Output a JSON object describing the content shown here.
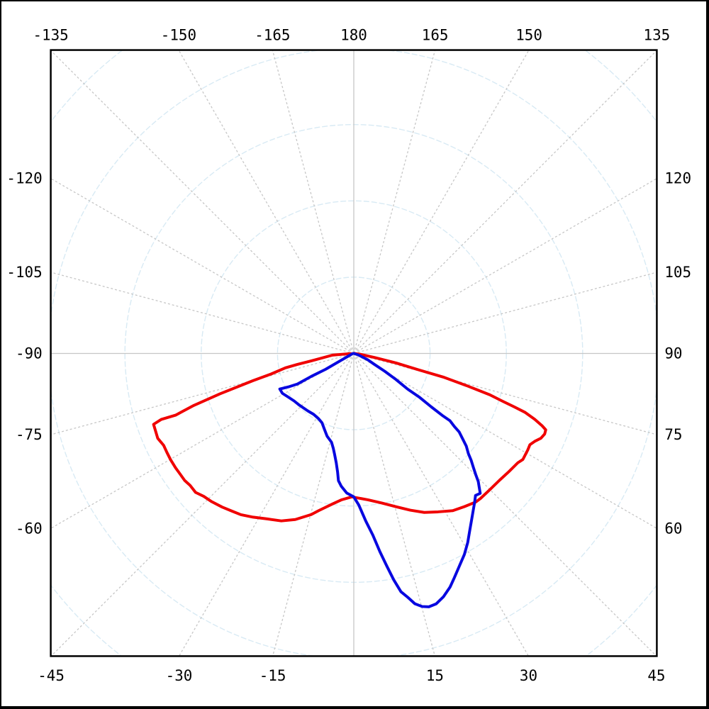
{
  "chart_data": {
    "type": "polar",
    "title": "",
    "description": "Polar luminous-intensity distribution diagram; 0 deg points straight down, +/-90 deg horizontal, 180 deg up. No legend or radial value labels shown.",
    "angle_unit": "degrees",
    "zero_angle_direction": "down",
    "plot": {
      "background": "#ffffff",
      "border_color": "#000000",
      "angular_grid_step_deg": 15,
      "grid_ray_color": "#c6c6c6",
      "grid_ring_color": "#d8eaf4",
      "radial_grid_rings": [
        0.25,
        0.5,
        0.75,
        1.0,
        1.25
      ],
      "radial_full_scale": 1.0
    },
    "angle_ticks": [
      {
        "angle": -135,
        "label": "-135"
      },
      {
        "angle": -150,
        "label": "-150"
      },
      {
        "angle": -165,
        "label": "-165"
      },
      {
        "angle": 180,
        "label": "180"
      },
      {
        "angle": 165,
        "label": "165"
      },
      {
        "angle": 150,
        "label": "150"
      },
      {
        "angle": 135,
        "label": "135"
      },
      {
        "angle": 120,
        "label": "120"
      },
      {
        "angle": 105,
        "label": "105"
      },
      {
        "angle": 90,
        "label": "90"
      },
      {
        "angle": 75,
        "label": "75"
      },
      {
        "angle": 60,
        "label": "60"
      },
      {
        "angle": 45,
        "label": "45"
      },
      {
        "angle": 30,
        "label": "30"
      },
      {
        "angle": 15,
        "label": "15"
      },
      {
        "angle": -15,
        "label": "-15"
      },
      {
        "angle": -30,
        "label": "-30"
      },
      {
        "angle": -45,
        "label": "-45"
      },
      {
        "angle": -60,
        "label": "-60"
      },
      {
        "angle": -75,
        "label": "-75"
      },
      {
        "angle": -90,
        "label": "-90"
      },
      {
        "angle": -105,
        "label": "-105"
      },
      {
        "angle": -120,
        "label": "-120"
      }
    ],
    "series": [
      {
        "name": "red",
        "color": "#f00000",
        "stroke_width": 4,
        "r_unit": "fraction of outermost full-scale grid ring",
        "points": [
          [
            -88,
            0.01
          ],
          [
            -85.4,
            0.07
          ],
          [
            -80.1,
            0.141
          ],
          [
            -79,
            0.188
          ],
          [
            -78.1,
            0.229
          ],
          [
            -76,
            0.28
          ],
          [
            -74.9,
            0.342
          ],
          [
            -73.2,
            0.458
          ],
          [
            -72,
            0.551
          ],
          [
            -70.9,
            0.618
          ],
          [
            -71.1,
            0.667
          ],
          [
            -70.5,
            0.696
          ],
          [
            -66.6,
            0.7
          ],
          [
            -64.2,
            0.692
          ],
          [
            -62.1,
            0.693
          ],
          [
            -59.9,
            0.694
          ],
          [
            -57.3,
            0.694
          ],
          [
            -55.4,
            0.693
          ],
          [
            -53.1,
            0.693
          ],
          [
            -51.1,
            0.689
          ],
          [
            -48.7,
            0.69
          ],
          [
            -46.4,
            0.679
          ],
          [
            -43.8,
            0.673
          ],
          [
            -40.6,
            0.663
          ],
          [
            -37.7,
            0.653
          ],
          [
            -35,
            0.645
          ],
          [
            -31.6,
            0.63
          ],
          [
            -27.6,
            0.612
          ],
          [
            -23.4,
            0.598
          ],
          [
            -19.4,
            0.577
          ],
          [
            -14.8,
            0.546
          ],
          [
            -12.6,
            0.528
          ],
          [
            -8,
            0.498
          ],
          [
            -4.7,
            0.481
          ],
          [
            -0.8,
            0.47
          ],
          [
            5.5,
            0.482
          ],
          [
            10.7,
            0.499
          ],
          [
            15.4,
            0.521
          ],
          [
            19.8,
            0.546
          ],
          [
            23.9,
            0.57
          ],
          [
            28,
            0.588
          ],
          [
            32.2,
            0.609
          ],
          [
            35.8,
            0.619
          ],
          [
            39.4,
            0.63
          ],
          [
            41.2,
            0.631
          ],
          [
            44.9,
            0.631
          ],
          [
            48.9,
            0.633
          ],
          [
            52.7,
            0.639
          ],
          [
            56.3,
            0.646
          ],
          [
            57.9,
            0.654
          ],
          [
            60.9,
            0.652
          ],
          [
            62.6,
            0.65
          ],
          [
            64.2,
            0.66
          ],
          [
            65.6,
            0.673
          ],
          [
            67.1,
            0.679
          ],
          [
            68.3,
            0.677
          ],
          [
            69,
            0.661
          ],
          [
            70,
            0.631
          ],
          [
            71,
            0.594
          ],
          [
            71.6,
            0.553
          ],
          [
            72.2,
            0.512
          ],
          [
            73.1,
            0.466
          ],
          [
            74.1,
            0.384
          ],
          [
            75.2,
            0.303
          ],
          [
            75.8,
            0.221
          ],
          [
            77.3,
            0.142
          ],
          [
            79,
            0.07
          ],
          [
            83,
            0.02
          ],
          [
            90,
            0
          ]
        ]
      },
      {
        "name": "blue",
        "color": "#0808e0",
        "stroke_width": 4,
        "r_unit": "fraction of outermost full-scale grid ring",
        "points": [
          [
            -78,
            0.005
          ],
          [
            -60.6,
            0.106
          ],
          [
            -61.6,
            0.158
          ],
          [
            -61.5,
            0.21
          ],
          [
            -62.9,
            0.241
          ],
          [
            -64.3,
            0.269
          ],
          [
            -60.8,
            0.268
          ],
          [
            -56.3,
            0.258
          ],
          [
            -51.5,
            0.25
          ],
          [
            -46.6,
            0.246
          ],
          [
            -38.6,
            0.241
          ],
          [
            -33.4,
            0.239
          ],
          [
            -28.4,
            0.243
          ],
          [
            -24.6,
            0.25
          ],
          [
            -21.3,
            0.266
          ],
          [
            -17.9,
            0.285
          ],
          [
            -14.1,
            0.3
          ],
          [
            -12.2,
            0.318
          ],
          [
            -10.8,
            0.336
          ],
          [
            -9.1,
            0.363
          ],
          [
            -7.8,
            0.392
          ],
          [
            -6.9,
            0.42
          ],
          [
            -5.4,
            0.437
          ],
          [
            -2.9,
            0.458
          ],
          [
            0,
            0.47
          ],
          [
            1.9,
            0.497
          ],
          [
            4.1,
            0.551
          ],
          [
            6,
            0.599
          ],
          [
            7.5,
            0.655
          ],
          [
            8.8,
            0.704
          ],
          [
            10,
            0.753
          ],
          [
            11.2,
            0.796
          ],
          [
            12.5,
            0.819
          ],
          [
            13.7,
            0.844
          ],
          [
            15.1,
            0.859
          ],
          [
            16.5,
            0.866
          ],
          [
            18.2,
            0.864
          ],
          [
            20.2,
            0.85
          ],
          [
            22.4,
            0.828
          ],
          [
            24.1,
            0.806
          ],
          [
            26.4,
            0.778
          ],
          [
            28.8,
            0.752
          ],
          [
            31.1,
            0.723
          ],
          [
            33.2,
            0.694
          ],
          [
            35.4,
            0.667
          ],
          [
            37.4,
            0.645
          ],
          [
            39.1,
            0.628
          ],
          [
            40.6,
            0.613
          ],
          [
            42.1,
            0.618
          ],
          [
            44.2,
            0.585
          ],
          [
            45.2,
            0.563
          ],
          [
            46.4,
            0.541
          ],
          [
            47.7,
            0.52
          ],
          [
            48.9,
            0.498
          ],
          [
            50.5,
            0.478
          ],
          [
            51.8,
            0.455
          ],
          [
            53.3,
            0.431
          ],
          [
            54,
            0.407
          ],
          [
            55,
            0.385
          ],
          [
            55,
            0.357
          ],
          [
            55.4,
            0.308
          ],
          [
            56.3,
            0.257
          ],
          [
            56.5,
            0.212
          ],
          [
            58.3,
            0.162
          ],
          [
            60,
            0.117
          ],
          [
            61.9,
            0.078
          ],
          [
            65.8,
            0.05
          ],
          [
            72,
            0.015
          ],
          [
            90,
            0
          ]
        ]
      }
    ]
  }
}
